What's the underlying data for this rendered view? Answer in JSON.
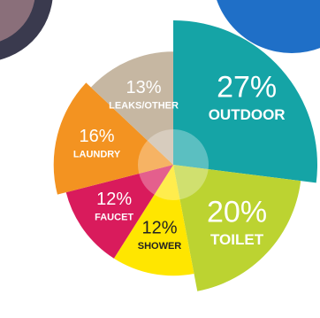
{
  "chart_data": {
    "type": "pie",
    "categories": [
      "OUTDOOR",
      "TOILET",
      "SHOWER",
      "FAUCET",
      "LAUNDRY",
      "LEAKS/OTHER"
    ],
    "values": [
      27,
      20,
      12,
      12,
      16,
      13
    ],
    "value_labels": [
      "27%",
      "20%",
      "12%",
      "12%",
      "16%",
      "13%"
    ],
    "colors": [
      "#15a4a6",
      "#bcd331",
      "#ffe600",
      "#d91b5c",
      "#f39321",
      "#c6b7a2"
    ]
  }
}
